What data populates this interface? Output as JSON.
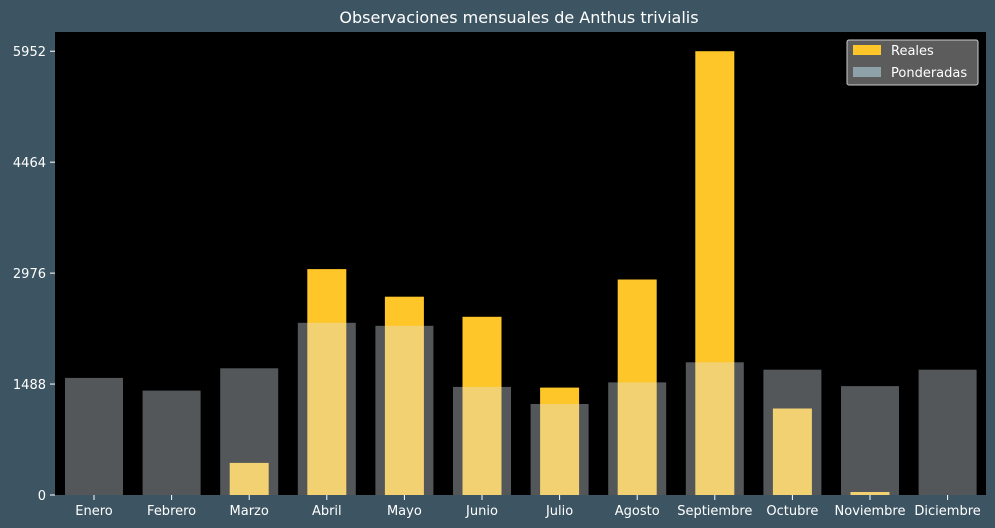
{
  "chart_data": {
    "type": "bar",
    "title": "Observaciones mensuales de Anthus trivialis",
    "xlabel": "",
    "ylabel": "",
    "categories": [
      "Enero",
      "Febrero",
      "Marzo",
      "Abril",
      "Mayo",
      "Junio",
      "Julio",
      "Agosto",
      "Septiembre",
      "Octubre",
      "Noviembre",
      "Diciembre"
    ],
    "series": [
      {
        "name": "Reales",
        "values": [
          0,
          0,
          430,
          3030,
          2660,
          2390,
          1440,
          2890,
          5952,
          1160,
          40,
          0
        ],
        "color": "#ffc629"
      },
      {
        "name": "Ponderadas",
        "values": [
          1570,
          1400,
          1700,
          2310,
          2270,
          1450,
          1220,
          1510,
          1780,
          1680,
          1460,
          1680
        ],
        "color": "#d9e4ea"
      }
    ],
    "ylim": [
      0,
      6200
    ],
    "yticks": [
      0,
      1488,
      2976,
      4464,
      5952
    ],
    "legend": {
      "position": "top-right"
    },
    "grid": false,
    "plot_background": "#000000",
    "page_background": "#3d5563"
  }
}
